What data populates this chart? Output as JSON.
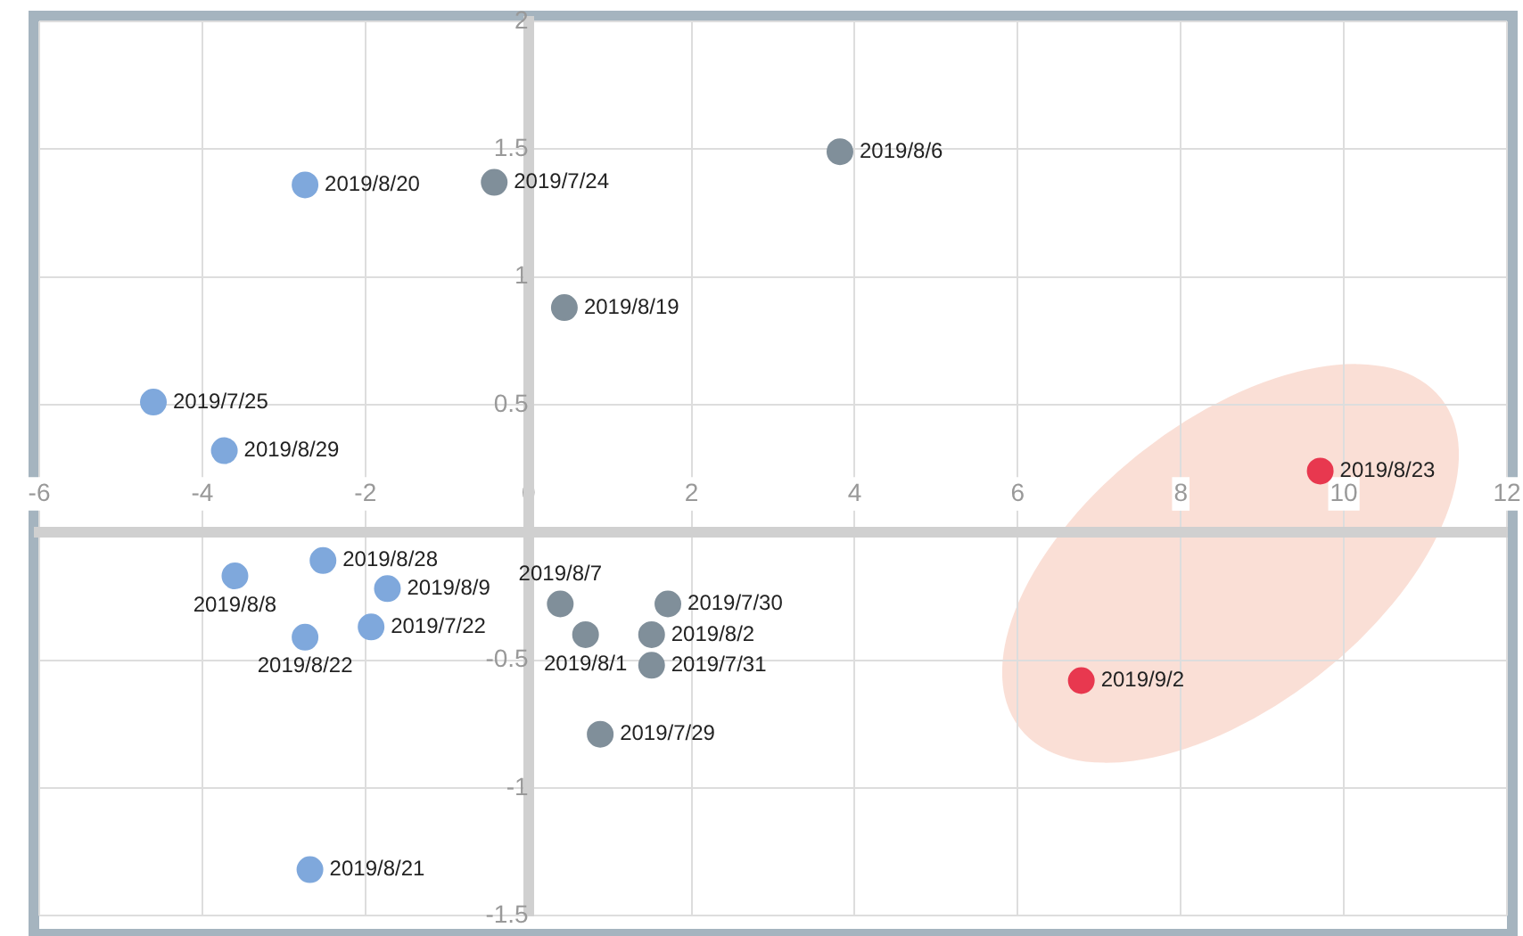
{
  "chart_data": {
    "type": "scatter",
    "xlim": [
      -6,
      12
    ],
    "ylim": [
      -1.5,
      2
    ],
    "xticks": [
      -6,
      -4,
      -2,
      0,
      2,
      4,
      6,
      8,
      10,
      12
    ],
    "yticks": [
      -1.5,
      -1,
      -0.5,
      0.5,
      1,
      1.5,
      2
    ],
    "grid": true,
    "legend": false,
    "marker": "circle",
    "series": [
      {
        "color": "#7fa8dc",
        "x": [
          -2.74,
          -4.6,
          -3.73,
          -2.52,
          -3.6,
          -1.73,
          -1.93,
          -2.74,
          -2.68
        ],
        "values": [
          1.36,
          0.51,
          0.32,
          -0.11,
          -0.17,
          -0.22,
          -0.37,
          -0.41,
          -1.32
        ]
      },
      {
        "color": "#808f9a",
        "x": [
          -0.42,
          3.82,
          0.44,
          0.39,
          1.71,
          0.7,
          1.51,
          1.51,
          0.88
        ],
        "values": [
          1.37,
          1.49,
          0.88,
          -0.28,
          -0.28,
          -0.4,
          -0.4,
          -0.52,
          -0.79
        ]
      },
      {
        "color": "#e8384f",
        "x": [
          9.71,
          6.78
        ],
        "values": [
          0.24,
          -0.58
        ]
      }
    ],
    "annotations": [
      {
        "text": "2019/8/20",
        "x": -2.74,
        "y": 1.36
      },
      {
        "text": "2019/7/25",
        "x": -4.6,
        "y": 0.51
      },
      {
        "text": "2019/8/29",
        "x": -3.73,
        "y": 0.32
      },
      {
        "text": "2019/8/28",
        "x": -2.52,
        "y": -0.11
      },
      {
        "text": "2019/8/8",
        "x": -3.6,
        "y": -0.17
      },
      {
        "text": "2019/8/9",
        "x": -1.73,
        "y": -0.22
      },
      {
        "text": "2019/7/22",
        "x": -1.93,
        "y": -0.37
      },
      {
        "text": "2019/8/22",
        "x": -2.74,
        "y": -0.41
      },
      {
        "text": "2019/8/21",
        "x": -2.68,
        "y": -1.32
      },
      {
        "text": "2019/7/24",
        "x": -0.42,
        "y": 1.37
      },
      {
        "text": "2019/8/6",
        "x": 3.82,
        "y": 1.49
      },
      {
        "text": "2019/8/19",
        "x": 0.44,
        "y": 0.88
      },
      {
        "text": "2019/8/7",
        "x": 0.39,
        "y": -0.28
      },
      {
        "text": "2019/7/30",
        "x": 1.71,
        "y": -0.28
      },
      {
        "text": "2019/8/2",
        "x": 1.51,
        "y": -0.4
      },
      {
        "text": "2019/8/1",
        "x": 0.7,
        "y": -0.4
      },
      {
        "text": "2019/7/31",
        "x": 1.51,
        "y": -0.52
      },
      {
        "text": "2019/7/29",
        "x": 0.88,
        "y": -0.79
      },
      {
        "text": "2019/8/23",
        "x": 9.71,
        "y": 0.24
      },
      {
        "text": "2019/9/2",
        "x": 6.78,
        "y": -0.58
      }
    ]
  }
}
